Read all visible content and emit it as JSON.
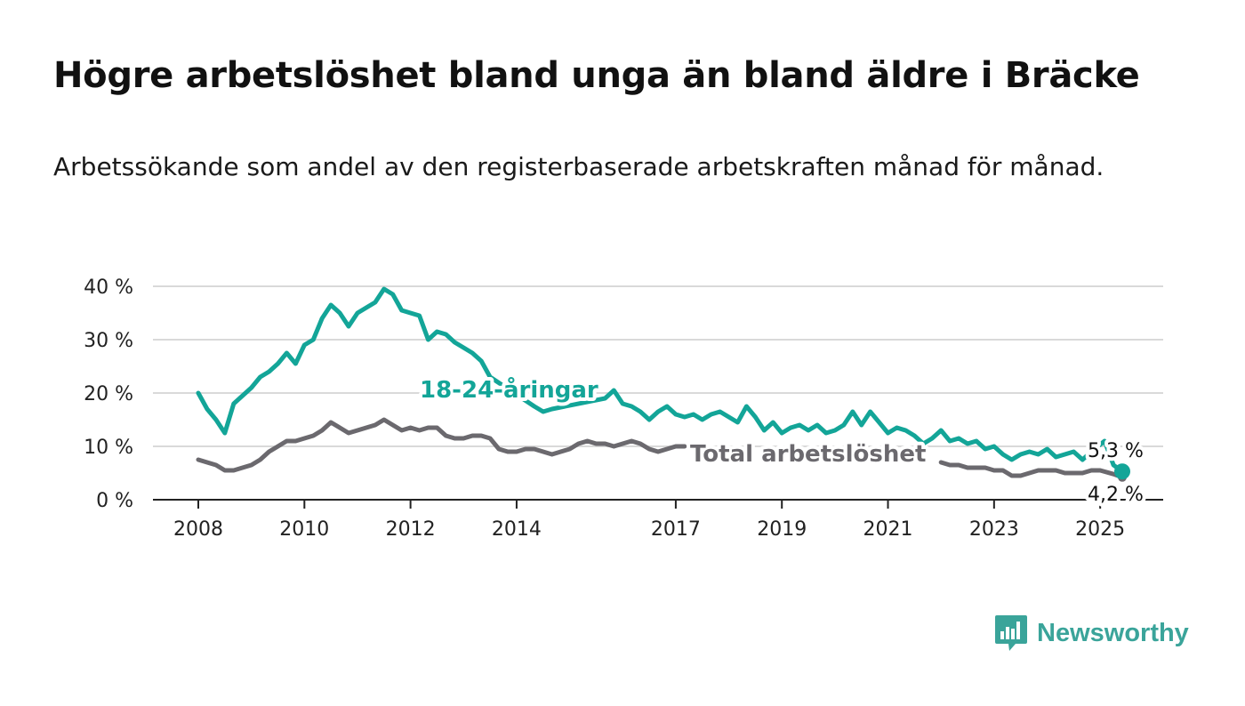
{
  "title": "Högre arbetslöshet bland unga än bland äldre i Bräcke",
  "subtitle": "Arbetssökande som andel av den registerbaserade arbetskraften månad för månad.",
  "brand": {
    "name": "Newsworthy",
    "icon": "bar-chart-speech-bubble-icon",
    "color": "#3aa49a"
  },
  "chart_data": {
    "type": "line",
    "grid": true,
    "ylim": [
      0,
      40
    ],
    "yticks": [
      0,
      10,
      20,
      30,
      40
    ],
    "ytick_labels": [
      "0 %",
      "10 %",
      "20 %",
      "30 %",
      "40 %"
    ],
    "xlim": [
      "2008-01",
      "2025-06"
    ],
    "xticks": [
      "2008-01",
      "2010-01",
      "2012-01",
      "2014-01",
      "2017-01",
      "2019-01",
      "2021-01",
      "2023-01",
      "2025-01"
    ],
    "xtick_labels": [
      "2008",
      "2010",
      "2012",
      "2014",
      "2017",
      "2019",
      "2021",
      "2023",
      "2025"
    ],
    "series": [
      {
        "name": "18-24-åringar",
        "color": "#13a598",
        "end_label": "5,3 %",
        "points": [
          [
            "2008-01",
            20
          ],
          [
            "2008-03",
            17
          ],
          [
            "2008-05",
            15
          ],
          [
            "2008-07",
            12.5
          ],
          [
            "2008-09",
            18
          ],
          [
            "2009-01",
            21
          ],
          [
            "2009-03",
            23
          ],
          [
            "2009-05",
            24
          ],
          [
            "2009-07",
            25.5
          ],
          [
            "2009-09",
            27.5
          ],
          [
            "2009-11",
            25.5
          ],
          [
            "2010-01",
            29
          ],
          [
            "2010-03",
            30
          ],
          [
            "2010-05",
            34
          ],
          [
            "2010-07",
            36.5
          ],
          [
            "2010-09",
            35
          ],
          [
            "2010-11",
            32.5
          ],
          [
            "2011-01",
            35
          ],
          [
            "2011-03",
            36
          ],
          [
            "2011-05",
            37
          ],
          [
            "2011-07",
            39.5
          ],
          [
            "2011-09",
            38.5
          ],
          [
            "2011-11",
            35.5
          ],
          [
            "2012-01",
            35
          ],
          [
            "2012-03",
            34.5
          ],
          [
            "2012-05",
            30
          ],
          [
            "2012-07",
            31.5
          ],
          [
            "2012-09",
            31
          ],
          [
            "2012-11",
            29.5
          ],
          [
            "2013-01",
            28.5
          ],
          [
            "2013-03",
            27.5
          ],
          [
            "2013-05",
            26
          ],
          [
            "2013-07",
            23
          ],
          [
            "2014-05",
            17.5
          ],
          [
            "2014-07",
            16.5
          ],
          [
            "2014-09",
            17
          ],
          [
            "2015-09",
            19
          ],
          [
            "2015-11",
            20.5
          ],
          [
            "2016-01",
            18
          ],
          [
            "2016-03",
            17.5
          ],
          [
            "2016-05",
            16.5
          ],
          [
            "2016-07",
            15
          ],
          [
            "2016-09",
            16.5
          ],
          [
            "2016-11",
            17.5
          ],
          [
            "2017-01",
            16
          ],
          [
            "2017-03",
            15.5
          ],
          [
            "2017-05",
            16
          ],
          [
            "2017-07",
            15
          ],
          [
            "2017-09",
            16
          ],
          [
            "2017-11",
            16.5
          ],
          [
            "2018-01",
            15.5
          ],
          [
            "2018-03",
            14.5
          ],
          [
            "2018-05",
            17.5
          ],
          [
            "2018-07",
            15.5
          ],
          [
            "2018-09",
            13
          ],
          [
            "2018-11",
            14.5
          ],
          [
            "2019-01",
            12.5
          ],
          [
            "2019-03",
            13.5
          ],
          [
            "2019-05",
            14
          ],
          [
            "2019-07",
            13
          ],
          [
            "2019-09",
            14
          ],
          [
            "2019-11",
            12.5
          ],
          [
            "2020-01",
            13
          ],
          [
            "2020-03",
            14
          ],
          [
            "2020-05",
            16.5
          ],
          [
            "2020-07",
            14
          ],
          [
            "2020-09",
            16.5
          ],
          [
            "2020-11",
            14.5
          ],
          [
            "2021-01",
            12.5
          ],
          [
            "2021-03",
            13.5
          ],
          [
            "2021-05",
            13
          ],
          [
            "2021-07",
            12
          ],
          [
            "2021-09",
            10.5
          ],
          [
            "2021-11",
            11.5
          ],
          [
            "2022-01",
            13
          ],
          [
            "2022-03",
            11
          ],
          [
            "2022-05",
            11.5
          ],
          [
            "2022-07",
            10.5
          ],
          [
            "2022-09",
            11
          ],
          [
            "2022-11",
            9.5
          ],
          [
            "2023-01",
            10
          ],
          [
            "2023-03",
            8.5
          ],
          [
            "2023-05",
            7.5
          ],
          [
            "2023-07",
            8.5
          ],
          [
            "2023-09",
            9
          ],
          [
            "2023-11",
            8.5
          ],
          [
            "2024-01",
            9.5
          ],
          [
            "2024-03",
            8
          ],
          [
            "2024-05",
            8.5
          ],
          [
            "2024-07",
            9
          ],
          [
            "2024-09",
            7.5
          ],
          [
            "2024-11",
            9
          ],
          [
            "2025-02",
            11
          ],
          [
            "2025-04",
            6.5
          ],
          [
            "2025-06",
            5.3
          ]
        ]
      },
      {
        "name": "Total arbetslöshet",
        "color": "#6b696e",
        "end_label": "4,2 %",
        "points": [
          [
            "2008-01",
            7.5
          ],
          [
            "2008-03",
            7
          ],
          [
            "2008-05",
            6.5
          ],
          [
            "2008-07",
            5.5
          ],
          [
            "2008-09",
            5.5
          ],
          [
            "2008-11",
            6
          ],
          [
            "2009-01",
            6.5
          ],
          [
            "2009-03",
            7.5
          ],
          [
            "2009-05",
            9
          ],
          [
            "2009-07",
            10
          ],
          [
            "2009-09",
            11
          ],
          [
            "2009-11",
            11
          ],
          [
            "2010-01",
            11.5
          ],
          [
            "2010-03",
            12
          ],
          [
            "2010-05",
            13
          ],
          [
            "2010-07",
            14.5
          ],
          [
            "2010-09",
            13.5
          ],
          [
            "2010-11",
            12.5
          ],
          [
            "2011-01",
            13
          ],
          [
            "2011-03",
            13.5
          ],
          [
            "2011-05",
            14
          ],
          [
            "2011-07",
            15
          ],
          [
            "2011-09",
            14
          ],
          [
            "2011-11",
            13
          ],
          [
            "2012-01",
            13.5
          ],
          [
            "2012-03",
            13
          ],
          [
            "2012-05",
            13.5
          ],
          [
            "2012-07",
            13.5
          ],
          [
            "2012-09",
            12
          ],
          [
            "2012-11",
            11.5
          ],
          [
            "2013-01",
            11.5
          ],
          [
            "2013-03",
            12
          ],
          [
            "2013-05",
            12
          ],
          [
            "2013-07",
            11.5
          ],
          [
            "2013-09",
            9.5
          ],
          [
            "2013-11",
            9
          ],
          [
            "2014-01",
            9
          ],
          [
            "2014-03",
            9.5
          ],
          [
            "2014-05",
            9.5
          ],
          [
            "2014-07",
            9
          ],
          [
            "2014-09",
            8.5
          ],
          [
            "2014-11",
            9
          ],
          [
            "2015-01",
            9.5
          ],
          [
            "2015-03",
            10.5
          ],
          [
            "2015-05",
            11
          ],
          [
            "2015-07",
            10.5
          ],
          [
            "2015-09",
            10.5
          ],
          [
            "2015-11",
            10
          ],
          [
            "2016-01",
            10.5
          ],
          [
            "2016-03",
            11
          ],
          [
            "2016-05",
            10.5
          ],
          [
            "2016-07",
            9.5
          ],
          [
            "2016-09",
            9
          ],
          [
            "2016-11",
            9.5
          ],
          [
            "2017-01",
            10
          ],
          [
            "2017-03",
            10
          ]
        ],
        "points_late": [
          [
            "2022-01",
            7
          ],
          [
            "2022-03",
            6.5
          ],
          [
            "2022-05",
            6.5
          ],
          [
            "2022-07",
            6
          ],
          [
            "2022-09",
            6
          ],
          [
            "2022-11",
            6
          ],
          [
            "2023-01",
            5.5
          ],
          [
            "2023-03",
            5.5
          ],
          [
            "2023-05",
            4.5
          ],
          [
            "2023-07",
            4.5
          ],
          [
            "2023-09",
            5
          ],
          [
            "2023-11",
            5.5
          ],
          [
            "2024-01",
            5.5
          ],
          [
            "2024-03",
            5.5
          ],
          [
            "2024-05",
            5
          ],
          [
            "2024-07",
            5
          ],
          [
            "2024-09",
            5
          ],
          [
            "2024-11",
            5.5
          ],
          [
            "2025-01",
            5.5
          ],
          [
            "2025-04",
            4.8
          ],
          [
            "2025-06",
            4.2
          ]
        ]
      }
    ]
  }
}
